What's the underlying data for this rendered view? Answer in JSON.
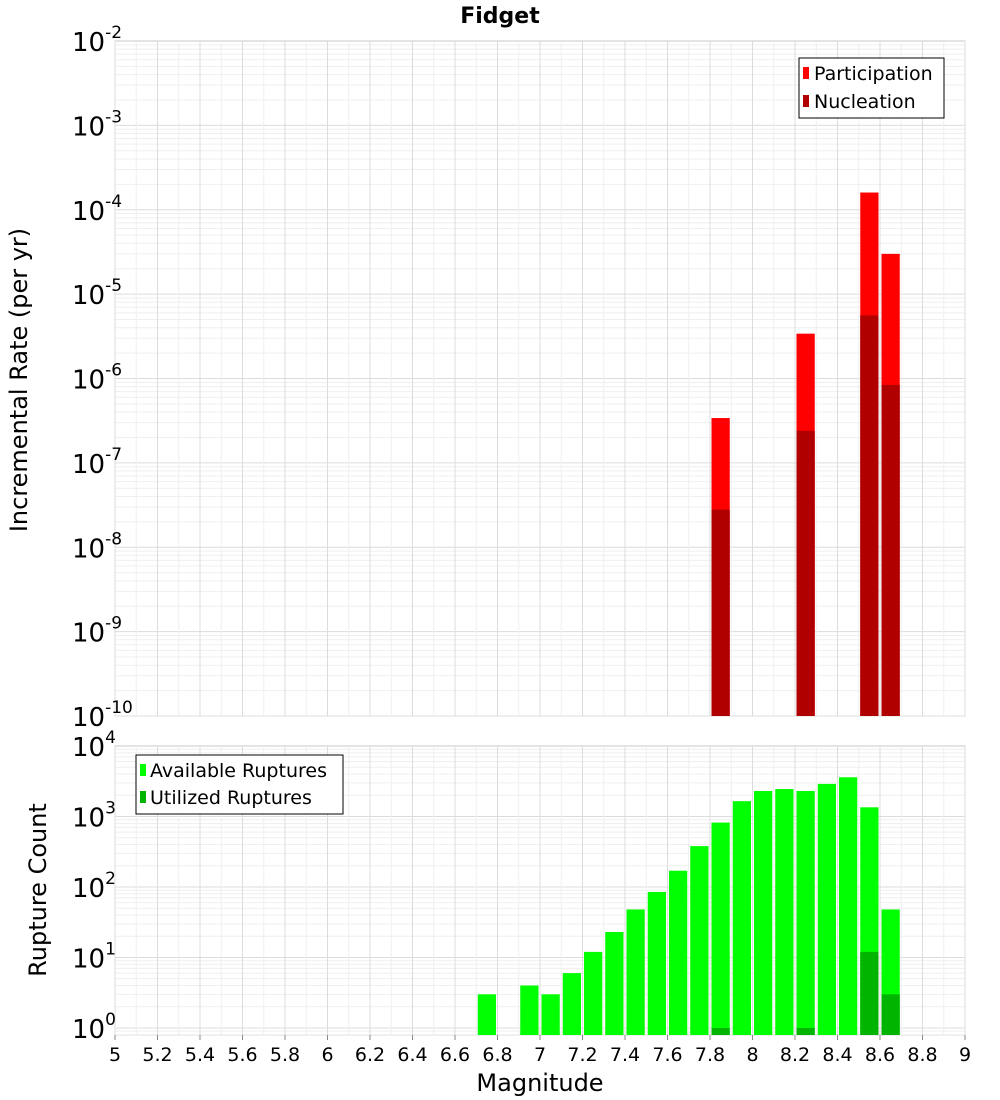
{
  "chart_data": [
    {
      "type": "bar",
      "title": "Fidget",
      "ylabel": "Incremental Rate (per yr)",
      "xlabel": "",
      "yscale": "log",
      "ylim_exp": [
        -10,
        -2
      ],
      "xlim": [
        5,
        9
      ],
      "legend": "top-right",
      "series": [
        {
          "name": "Participation",
          "color": "#ff0000",
          "x": [
            7.85,
            8.25,
            8.55,
            8.65
          ],
          "values": [
            3.4e-07,
            3.4e-06,
            0.00016,
            3e-05
          ]
        },
        {
          "name": "Nucleation",
          "color": "#b00000",
          "x": [
            7.85,
            8.25,
            8.55,
            8.65
          ],
          "values": [
            2.8e-08,
            2.4e-07,
            5.6e-06,
            8.4e-07
          ]
        }
      ],
      "ytick_exponents": [
        -10,
        -9,
        -8,
        -7,
        -6,
        -5,
        -4,
        -3,
        -2
      ]
    },
    {
      "type": "bar",
      "title": "",
      "ylabel": "Rupture Count",
      "xlabel": "Magnitude",
      "yscale": "log",
      "ylim_exp": [
        -0.1,
        4
      ],
      "xlim": [
        5,
        9
      ],
      "legend": "top-left",
      "series": [
        {
          "name": "Available Ruptures",
          "color": "#00ff00",
          "x": [
            6.75,
            6.95,
            7.05,
            7.15,
            7.25,
            7.35,
            7.45,
            7.55,
            7.65,
            7.75,
            7.85,
            7.95,
            8.05,
            8.15,
            8.25,
            8.35,
            8.45,
            8.55,
            8.65
          ],
          "values": [
            3,
            4,
            3,
            6,
            12,
            23,
            48,
            85,
            170,
            380,
            820,
            1650,
            2300,
            2450,
            2300,
            2900,
            3600,
            1350,
            48
          ]
        },
        {
          "name": "Utilized Ruptures",
          "color": "#00b400",
          "x": [
            7.85,
            8.25,
            8.55,
            8.65
          ],
          "values": [
            1,
            1,
            12,
            3
          ]
        }
      ],
      "ytick_exponents": [
        0,
        1,
        2,
        3,
        4
      ],
      "xticks": [
        "5",
        "5.2",
        "5.4",
        "5.6",
        "5.8",
        "6",
        "6.2",
        "6.4",
        "6.6",
        "6.8",
        "7",
        "7.2",
        "7.4",
        "7.6",
        "7.8",
        "8",
        "8.2",
        "8.4",
        "8.6",
        "8.8",
        "9"
      ]
    }
  ],
  "tick_base": "10"
}
